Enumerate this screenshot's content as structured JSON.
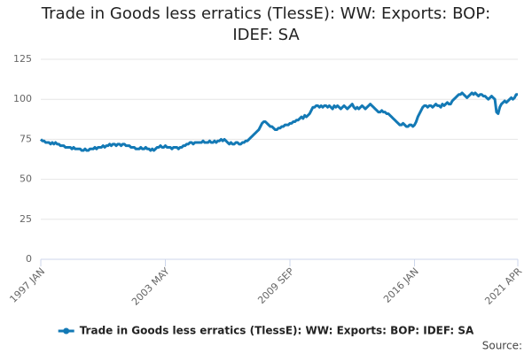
{
  "chart_data": {
    "type": "line",
    "title": "Trade in Goods less erratics (TlessE): WW: Exports: BOP: IDEF: SA",
    "source": "Source:",
    "categories": [
      "1997 JAN",
      null,
      null,
      null,
      null,
      null,
      null,
      null,
      null,
      null,
      null,
      null,
      null,
      null,
      null,
      null,
      null,
      null,
      null,
      null,
      null,
      null,
      null,
      null,
      null,
      null,
      null,
      null,
      null,
      null,
      null,
      null,
      null,
      null,
      null,
      null,
      null,
      null,
      null,
      null,
      null,
      null,
      null,
      null,
      null,
      null,
      null,
      null,
      null,
      null,
      null,
      null,
      null,
      null,
      null,
      null,
      null,
      null,
      null,
      null,
      null,
      null,
      null,
      null,
      null,
      null,
      null,
      null,
      null,
      null,
      null,
      null,
      null,
      null,
      null,
      null,
      "2003 MAY",
      null,
      null,
      null,
      null,
      null,
      null,
      null,
      null,
      null,
      null,
      null,
      null,
      null,
      null,
      null,
      null,
      null,
      null,
      null,
      null,
      null,
      null,
      null,
      null,
      null,
      null,
      null,
      null,
      null,
      null,
      null,
      null,
      null,
      null,
      null,
      null,
      null,
      null,
      null,
      null,
      null,
      null,
      null,
      null,
      null,
      null,
      null,
      null,
      null,
      null,
      null,
      null,
      null,
      null,
      null,
      null,
      null,
      null,
      null,
      null,
      null,
      null,
      null,
      null,
      null,
      null,
      null,
      null,
      null,
      null,
      null,
      null,
      null,
      null,
      null,
      "2009 SEP",
      null,
      null,
      null,
      null,
      null,
      null,
      null,
      null,
      null,
      null,
      null,
      null,
      null,
      null,
      null,
      null,
      null,
      null,
      null,
      null,
      null,
      null,
      null,
      null,
      null,
      null,
      null,
      null,
      null,
      null,
      null,
      null,
      null,
      null,
      null,
      null,
      null,
      null,
      null,
      null,
      null,
      null,
      null,
      null,
      null,
      null,
      null,
      null,
      null,
      null,
      null,
      null,
      null,
      null,
      null,
      null,
      null,
      null,
      null,
      null,
      null,
      null,
      null,
      null,
      null,
      null,
      null,
      null,
      null,
      null,
      null,
      null,
      null,
      null,
      null,
      "2016 JAN",
      null,
      null,
      null,
      null,
      null,
      null,
      null,
      null,
      null,
      null,
      null,
      null,
      null,
      null,
      null,
      null,
      null,
      null,
      null,
      null,
      null,
      null,
      null,
      null,
      null,
      null,
      null,
      null,
      null,
      null,
      null,
      null,
      null,
      null,
      null,
      null,
      null,
      null,
      null,
      null,
      null,
      null,
      null,
      null,
      null,
      null,
      null,
      null,
      null,
      null,
      null,
      null,
      null,
      null,
      null,
      null,
      null,
      null,
      null,
      null,
      null,
      null,
      "2021 APR"
    ],
    "series": [
      {
        "name": "Trade in Goods less erratics (TlessE): WW: Exports: BOP: IDEF: SA",
        "color": "#1379b5",
        "values": [
          75,
          74,
          74,
          73,
          73,
          73,
          72,
          73,
          72,
          73,
          72,
          72,
          71,
          71,
          71,
          70,
          70,
          70,
          70,
          69,
          70,
          69,
          69,
          69,
          69,
          68,
          68,
          69,
          68,
          68,
          69,
          69,
          69,
          70,
          69,
          70,
          70,
          70,
          71,
          70,
          71,
          71,
          72,
          71,
          72,
          72,
          71,
          72,
          72,
          71,
          72,
          72,
          71,
          71,
          71,
          70,
          70,
          70,
          69,
          69,
          69,
          70,
          69,
          69,
          70,
          69,
          69,
          68,
          69,
          68,
          69,
          70,
          70,
          71,
          70,
          70,
          71,
          70,
          70,
          70,
          69,
          70,
          70,
          70,
          69,
          70,
          70,
          71,
          71,
          72,
          72,
          73,
          73,
          72,
          73,
          73,
          73,
          73,
          73,
          74,
          73,
          73,
          73,
          74,
          73,
          73,
          74,
          73,
          74,
          74,
          75,
          74,
          75,
          74,
          73,
          72,
          73,
          72,
          72,
          73,
          73,
          72,
          72,
          73,
          73,
          74,
          74,
          75,
          76,
          77,
          78,
          79,
          80,
          81,
          83,
          85,
          86,
          86,
          85,
          84,
          83,
          83,
          82,
          81,
          81,
          82,
          82,
          83,
          83,
          84,
          84,
          84,
          85,
          85,
          86,
          86,
          87,
          87,
          88,
          89,
          88,
          90,
          89,
          90,
          91,
          93,
          95,
          95,
          96,
          96,
          95,
          96,
          95,
          96,
          96,
          95,
          96,
          95,
          94,
          96,
          95,
          96,
          95,
          94,
          95,
          96,
          95,
          94,
          95,
          96,
          97,
          95,
          94,
          95,
          94,
          95,
          96,
          95,
          94,
          95,
          96,
          97,
          96,
          95,
          94,
          93,
          92,
          92,
          93,
          92,
          92,
          91,
          91,
          90,
          89,
          88,
          87,
          86,
          85,
          84,
          84,
          85,
          84,
          83,
          83,
          84,
          84,
          83,
          84,
          86,
          89,
          91,
          93,
          95,
          96,
          96,
          95,
          96,
          96,
          95,
          96,
          97,
          96,
          96,
          95,
          97,
          96,
          97,
          98,
          97,
          97,
          99,
          100,
          101,
          102,
          103,
          103,
          104,
          103,
          102,
          101,
          102,
          103,
          104,
          103,
          104,
          103,
          102,
          103,
          103,
          102,
          102,
          101,
          100,
          101,
          102,
          101,
          100,
          92,
          91,
          95,
          97,
          98,
          99,
          98,
          99,
          100,
          101,
          100,
          101,
          103,
          103
        ]
      }
    ],
    "ylim": [
      0,
      125
    ],
    "yticks": [
      0,
      25,
      50,
      75,
      100,
      125
    ],
    "grid": true,
    "legend": "bottom"
  }
}
